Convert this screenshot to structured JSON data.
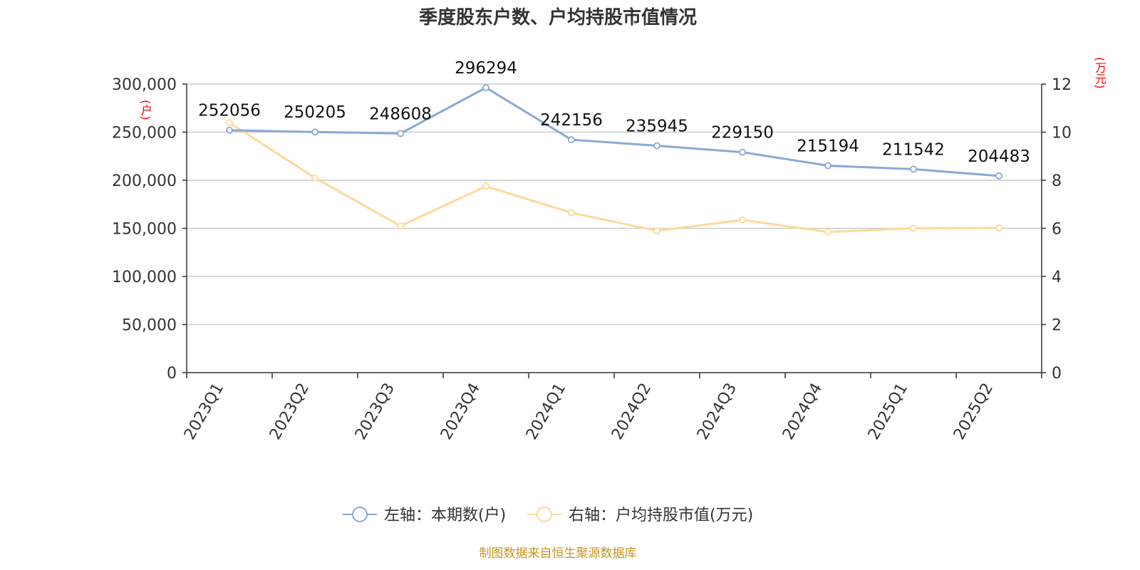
{
  "title": "季度股东户数、户均持股市值情况",
  "left_unit": "(户)",
  "right_unit": "(万元)",
  "source": "制图数据来自恒生聚源数据库",
  "colors": {
    "series1": "#8aa9d6",
    "series2": "#fdd99a",
    "grid": "#cccccc",
    "axis": "#333333"
  },
  "chart_data": {
    "type": "line",
    "categories": [
      "2023Q1",
      "2023Q2",
      "2023Q3",
      "2023Q4",
      "2024Q1",
      "2024Q2",
      "2024Q3",
      "2024Q4",
      "2025Q1",
      "2025Q2"
    ],
    "y_left": {
      "min": 0,
      "max": 300000,
      "ticks": [
        "0",
        "50,000",
        "100,000",
        "150,000",
        "200,000",
        "250,000",
        "300,000"
      ]
    },
    "y_right": {
      "min": 0,
      "max": 12,
      "ticks": [
        "0",
        "2",
        "4",
        "6",
        "8",
        "10",
        "12"
      ]
    },
    "series": [
      {
        "name": "左轴：本期数(户)",
        "axis": "left",
        "values": [
          252056,
          250205,
          248608,
          296294,
          242156,
          235945,
          229150,
          215194,
          211542,
          204483
        ],
        "labels": [
          "252056",
          "250205",
          "248608",
          "296294",
          "242156",
          "235945",
          "229150",
          "215194",
          "211542",
          "204483"
        ]
      },
      {
        "name": "右轴：户均持股市值(万元)",
        "axis": "right",
        "values": [
          10.4,
          8.1,
          6.1,
          7.75,
          6.65,
          5.9,
          6.35,
          5.85,
          6.0,
          6.02
        ]
      }
    ],
    "grid": true,
    "legend_position": "bottom-center"
  }
}
